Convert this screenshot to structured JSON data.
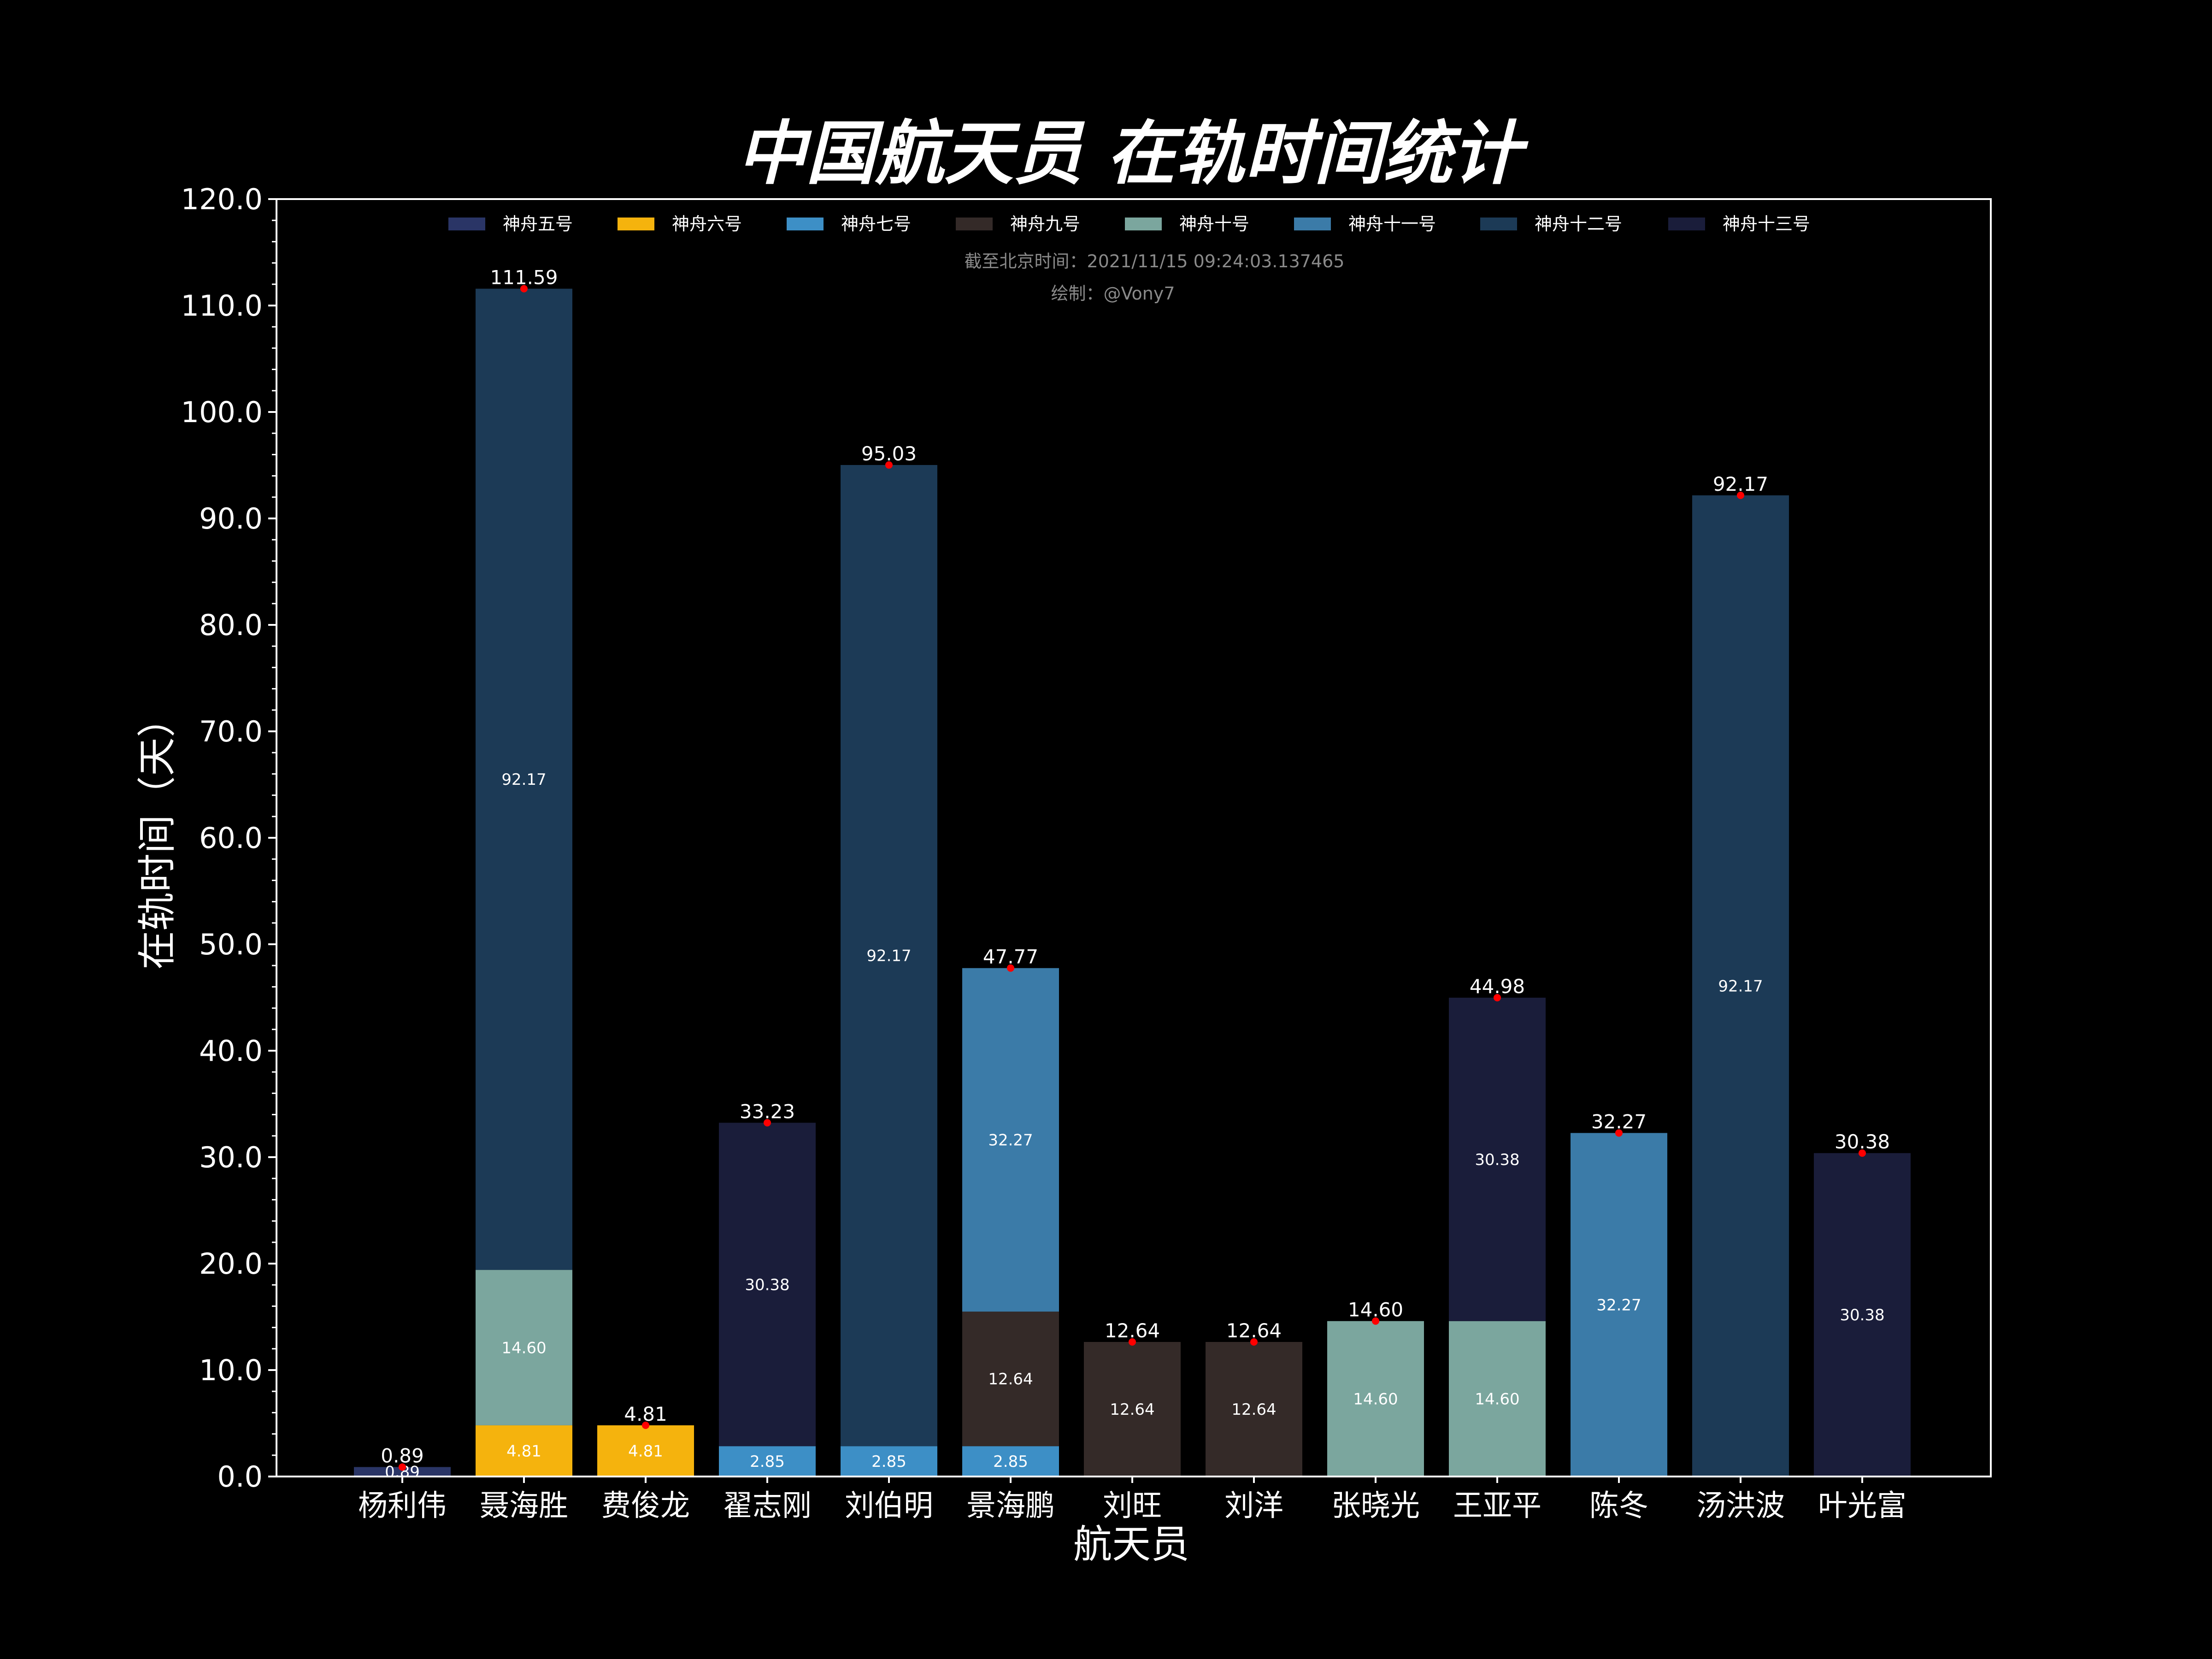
{
  "chart_data": {
    "type": "bar",
    "stacked": true,
    "title": "中国航天员 在轨时间统计",
    "xlabel": "航天员",
    "ylabel": "在轨时间（天）",
    "ylim": [
      0,
      120
    ],
    "yticks": [
      "0.0",
      "10.0",
      "20.0",
      "30.0",
      "40.0",
      "50.0",
      "60.0",
      "70.0",
      "80.0",
      "90.0",
      "100.0",
      "110.0",
      "120.0"
    ],
    "grid": false,
    "legend_position": "top-center",
    "annotation_time": "截至北京时间：2021/11/15 09:24:03.137465",
    "annotation_author": "绘制：@Vony7",
    "categories": [
      "杨利伟",
      "聂海胜",
      "费俊龙",
      "翟志刚",
      "刘伯明",
      "景海鹏",
      "刘旺",
      "刘洋",
      "张晓光",
      "王亚平",
      "陈冬",
      "汤洪波",
      "叶光富"
    ],
    "totals": [
      "0.89",
      "111.59",
      "4.81",
      "33.23",
      "95.03",
      "47.77",
      "12.64",
      "12.64",
      "14.60",
      "44.98",
      "32.27",
      "92.17",
      "30.38"
    ],
    "series": [
      {
        "name": "神舟五号",
        "color": "#2a3566",
        "values": [
          0.89,
          0,
          0,
          0,
          0,
          0,
          0,
          0,
          0,
          0,
          0,
          0,
          0
        ],
        "labels": [
          "0.89",
          "",
          "",
          "",
          "",
          "",
          "",
          "",
          "",
          "",
          "",
          "",
          ""
        ]
      },
      {
        "name": "神舟六号",
        "color": "#f5b30d",
        "values": [
          0,
          4.81,
          4.81,
          0,
          0,
          0,
          0,
          0,
          0,
          0,
          0,
          0,
          0
        ],
        "labels": [
          "",
          "4.81",
          "4.81",
          "",
          "",
          "",
          "",
          "",
          "",
          "",
          "",
          "",
          ""
        ]
      },
      {
        "name": "神舟七号",
        "color": "#3d8fc6",
        "values": [
          0,
          0,
          0,
          2.85,
          2.85,
          2.85,
          0,
          0,
          0,
          0,
          0,
          0,
          0
        ],
        "labels": [
          "",
          "",
          "",
          "2.85",
          "2.85",
          "2.85",
          "",
          "",
          "",
          "",
          "",
          "",
          ""
        ]
      },
      {
        "name": "神舟九号",
        "color": "#342a28",
        "values": [
          0,
          0,
          0,
          0,
          0,
          12.64,
          12.64,
          12.64,
          0,
          0,
          0,
          0,
          0
        ],
        "labels": [
          "",
          "",
          "",
          "",
          "",
          "12.64",
          "12.64",
          "12.64",
          "",
          "",
          "",
          "",
          ""
        ]
      },
      {
        "name": "神舟十号",
        "color": "#7ba69e",
        "values": [
          0,
          14.6,
          0,
          0,
          0,
          0,
          0,
          0,
          14.6,
          14.6,
          0,
          0,
          0
        ],
        "labels": [
          "",
          "14.60",
          "",
          "",
          "",
          "",
          "",
          "",
          "14.60",
          "14.60",
          "",
          "",
          ""
        ]
      },
      {
        "name": "神舟十一号",
        "color": "#3b7ba8",
        "values": [
          0,
          0,
          0,
          0,
          0,
          32.27,
          0,
          0,
          0,
          0,
          32.27,
          0,
          0
        ],
        "labels": [
          "",
          "",
          "",
          "",
          "",
          "32.27",
          "",
          "",
          "",
          "",
          "32.27",
          "",
          ""
        ]
      },
      {
        "name": "神舟十二号",
        "color": "#1c3a56",
        "values": [
          0,
          92.17,
          0,
          0,
          92.17,
          0,
          0,
          0,
          0,
          0,
          0,
          92.17,
          0
        ],
        "labels": [
          "",
          "92.17",
          "",
          "",
          "92.17",
          "",
          "",
          "",
          "",
          "",
          "",
          "92.17",
          ""
        ]
      },
      {
        "name": "神舟十三号",
        "color": "#1a1d3a",
        "values": [
          0,
          0,
          0,
          30.38,
          0,
          0,
          0,
          0,
          0,
          30.38,
          0,
          0,
          30.38
        ],
        "labels": [
          "",
          "",
          "",
          "30.38",
          "",
          "",
          "",
          "",
          "",
          "30.38",
          "",
          "",
          "30.38"
        ]
      }
    ],
    "colors": {
      "background": "#000000",
      "axes": "#ffffff",
      "marker": "#ff0000",
      "annotation": "#8a8a8a"
    }
  }
}
